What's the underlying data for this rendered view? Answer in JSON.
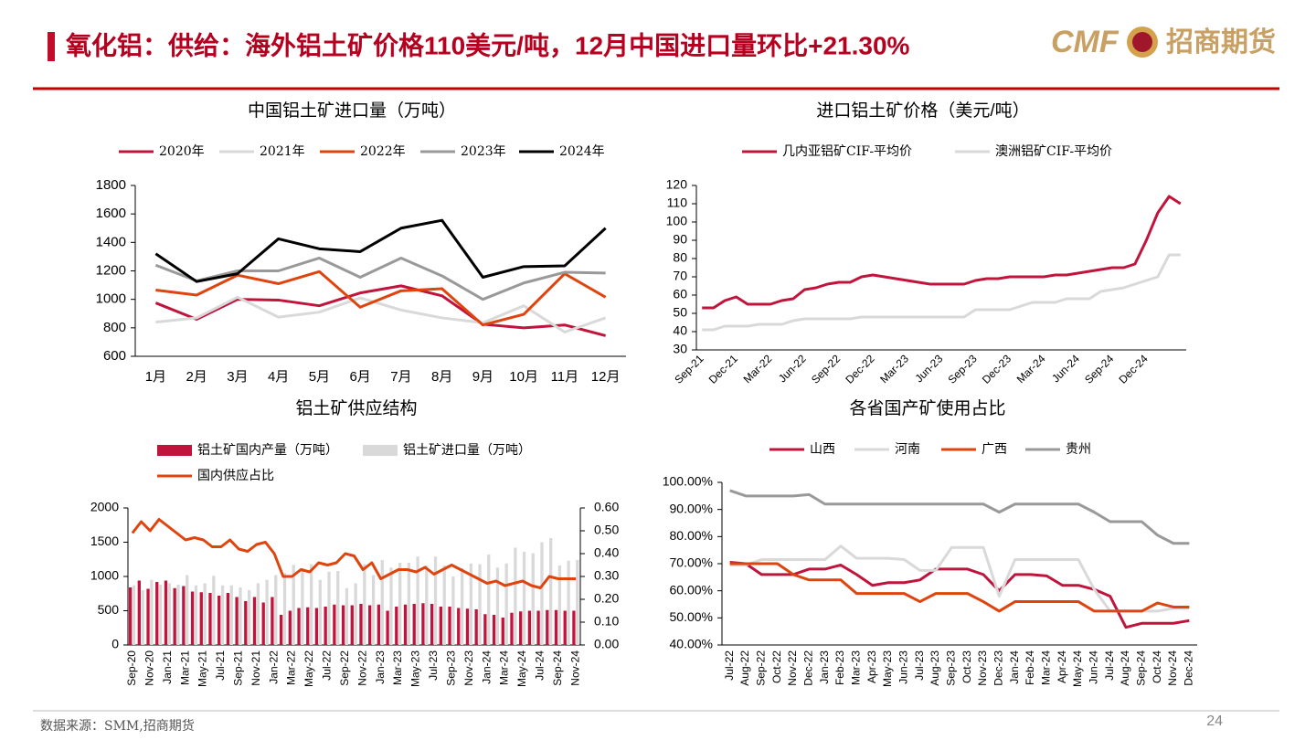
{
  "header": {
    "title": "氧化铝：供给：海外铝土矿价格110美元/吨，12月中国进口量环比+21.30%",
    "logo_left": "CMF",
    "logo_right": "招商期货"
  },
  "footer": {
    "source": "数据来源：SMM,招商期货",
    "page": "24"
  },
  "chart_data": [
    {
      "type": "line",
      "title": "中国铝土矿进口量（万吨）",
      "categories": [
        "1月",
        "2月",
        "3月",
        "4月",
        "5月",
        "6月",
        "7月",
        "8月",
        "9月",
        "10月",
        "11月",
        "12月"
      ],
      "series": [
        {
          "name": "2020年",
          "color": "#c0143c",
          "values": [
            975,
            860,
            1000,
            995,
            955,
            1045,
            1095,
            1025,
            825,
            800,
            820,
            745
          ]
        },
        {
          "name": "2021年",
          "color": "#d9d9d9",
          "values": [
            840,
            870,
            1015,
            875,
            910,
            1010,
            925,
            870,
            835,
            955,
            770,
            870
          ]
        },
        {
          "name": "2022年",
          "color": "#e0440e",
          "values": [
            1065,
            1030,
            1170,
            1110,
            1195,
            945,
            1060,
            1075,
            820,
            895,
            1180,
            1015
          ]
        },
        {
          "name": "2023年",
          "color": "#999999",
          "values": [
            1240,
            1130,
            1200,
            1200,
            1290,
            1155,
            1290,
            1165,
            1000,
            1115,
            1190,
            1185
          ]
        },
        {
          "name": "2024年",
          "color": "#000000",
          "values": [
            1320,
            1125,
            1180,
            1425,
            1355,
            1335,
            1500,
            1555,
            1155,
            1230,
            1235,
            1500
          ]
        }
      ],
      "ylim": [
        600,
        1800
      ],
      "yticks": [
        600,
        800,
        {
          "value": 1000,
          "label": "1000"
        },
        1200,
        1400,
        1600,
        1800
      ]
    },
    {
      "type": "line",
      "title": "进口铝土矿价格（美元/吨）",
      "categories": [
        "Sep-21",
        null,
        null,
        "Dec-21",
        null,
        null,
        "Mar-22",
        null,
        null,
        "Jun-22",
        null,
        null,
        "Sep-22",
        null,
        null,
        "Dec-22",
        null,
        null,
        "Mar-23",
        null,
        null,
        "Jun-23",
        null,
        null,
        "Sep-23",
        null,
        null,
        "Dec-23",
        null,
        null,
        "Mar-24",
        null,
        null,
        "Jun-24",
        null,
        null,
        "Sep-24",
        null,
        null,
        "Dec-24",
        null,
        null,
        null
      ],
      "series": [
        {
          "name": "几内亚铝矿CIF-平均价",
          "color": "#c0143c",
          "values": [
            53,
            53,
            57,
            59,
            55,
            55,
            55,
            57,
            58,
            63,
            64,
            66,
            67,
            67,
            70,
            71,
            70,
            69,
            68,
            67,
            66,
            66,
            66,
            66,
            68,
            69,
            69,
            70,
            70,
            70,
            70,
            71,
            71,
            72,
            73,
            74,
            75,
            75,
            77,
            90,
            105,
            114,
            110
          ]
        },
        {
          "name": "澳洲铝矿CIF-平均价",
          "color": "#d9d9d9",
          "values": [
            41,
            41,
            43,
            43,
            43,
            44,
            44,
            44,
            46,
            47,
            47,
            47,
            47,
            47,
            48,
            48,
            48,
            48,
            48,
            48,
            48,
            48,
            48,
            48,
            52,
            52,
            52,
            52,
            54,
            56,
            56,
            56,
            58,
            58,
            58,
            62,
            63,
            64,
            66,
            68,
            70,
            82,
            82
          ]
        }
      ],
      "ylim": [
        30,
        120
      ],
      "yticks": [
        30,
        40,
        50,
        60,
        70,
        80,
        90,
        100,
        110,
        120
      ]
    },
    {
      "type": "combo",
      "title": "铝土矿供应结构",
      "categories": [
        "Sep-20",
        null,
        "Nov-20",
        null,
        "Jan-21",
        null,
        "Mar-21",
        null,
        "May-21",
        null,
        "Jul-21",
        null,
        "Sep-21",
        null,
        "Nov-21",
        null,
        "Jan-22",
        null,
        "Mar-22",
        null,
        "May-22",
        null,
        "Jul-22",
        null,
        "Sep-22",
        null,
        "Nov-22",
        null,
        "Jan-23",
        null,
        "Mar-23",
        null,
        "May-23",
        null,
        "Jul-23",
        null,
        "Sep-23",
        null,
        "Nov-23",
        null,
        "Jan-24",
        null,
        "Mar-24",
        null,
        "May-24",
        null,
        "Jul-24",
        null,
        "Sep-24",
        null,
        "Nov-24"
      ],
      "series": [
        {
          "name": "铝土矿国内产量（万吨）",
          "type": "bar",
          "color": "#c0143c",
          "values": [
            840,
            940,
            820,
            920,
            940,
            830,
            860,
            780,
            770,
            760,
            720,
            760,
            700,
            640,
            700,
            620,
            700,
            440,
            500,
            540,
            550,
            540,
            560,
            590,
            580,
            580,
            600,
            580,
            590,
            500,
            560,
            590,
            600,
            610,
            600,
            560,
            560,
            540,
            530,
            520,
            450,
            440,
            400,
            470,
            490,
            500,
            500,
            510,
            510,
            500,
            500
          ]
        },
        {
          "name": "铝土矿进口量（万吨）",
          "type": "bar",
          "color": "#d9d9d9",
          "values": [
            870,
            800,
            950,
            880,
            900,
            880,
            1020,
            870,
            900,
            1010,
            870,
            870,
            840,
            800,
            900,
            950,
            1020,
            1050,
            1170,
            1120,
            1180,
            950,
            1070,
            1080,
            830,
            900,
            1180,
            1020,
            1240,
            1130,
            1200,
            1200,
            1290,
            1160,
            1290,
            1160,
            1000,
            1120,
            1190,
            1180,
            1320,
            1130,
            1190,
            1420,
            1360,
            1340,
            1500,
            1560,
            1160,
            1230,
            1240
          ]
        },
        {
          "name": "国内供应占比",
          "type": "line",
          "axis": "y2",
          "color": "#e0440e",
          "values": [
            0.49,
            0.54,
            0.5,
            0.55,
            0.52,
            0.49,
            0.46,
            0.47,
            0.46,
            0.43,
            0.43,
            0.46,
            0.42,
            0.41,
            0.44,
            0.45,
            0.4,
            0.3,
            0.3,
            0.33,
            0.32,
            0.36,
            0.35,
            0.36,
            0.4,
            0.39,
            0.33,
            0.36,
            0.29,
            0.31,
            0.33,
            0.33,
            0.32,
            0.34,
            0.31,
            0.33,
            0.35,
            0.33,
            0.31,
            0.29,
            0.27,
            0.28,
            0.26,
            0.27,
            0.28,
            0.26,
            0.25,
            0.3,
            0.29,
            0.29,
            0.29
          ]
        }
      ],
      "ylim": [
        0,
        2000
      ],
      "yticks": [
        0,
        500,
        {
          "value": 1000,
          "label": "1000"
        },
        1500,
        2000
      ],
      "y2lim": [
        0,
        0.6
      ],
      "y2ticks": [
        {
          "value": 0,
          "label": "0.00"
        },
        {
          "value": 0.1,
          "label": "0.10"
        },
        {
          "value": 0.2,
          "label": "0.20"
        },
        {
          "value": 0.3,
          "label": "0.30"
        },
        {
          "value": 0.4,
          "label": "0.40"
        },
        {
          "value": 0.5,
          "label": "0.50"
        },
        {
          "value": 0.6,
          "label": "0.60"
        }
      ]
    },
    {
      "type": "line",
      "title": "各省国产矿使用占比",
      "categories": [
        "Jul-22",
        "Aug-22",
        "Sep-22",
        "Oct-22",
        "Nov-22",
        "Dec-22",
        "Jan-23",
        "Feb-23",
        "Mar-23",
        "Apr-23",
        "May-23",
        "Jun-23",
        "Jul-23",
        "Aug-23",
        "Sep-23",
        "Oct-23",
        "Nov-23",
        "Dec-23",
        "Jan-24",
        "Feb-24",
        "Mar-24",
        "Apr-24",
        "May-24",
        "Jun-24",
        "Jul-24",
        "Aug-24",
        "Sep-24",
        "Oct-24",
        "Nov-24",
        "Dec-24"
      ],
      "series": [
        {
          "name": "山西",
          "color": "#c0143c",
          "values": [
            70.5,
            70,
            66,
            66,
            66,
            68,
            68,
            69.5,
            66,
            62,
            63,
            63,
            64,
            68,
            68,
            68,
            66,
            60,
            66,
            66,
            65.5,
            62,
            62,
            60.5,
            58,
            46.5,
            48,
            48,
            48,
            49
          ]
        },
        {
          "name": "河南",
          "color": "#d9d9d9",
          "values": [
            69.5,
            69.5,
            71.5,
            71.5,
            71.5,
            71.5,
            71.5,
            76.5,
            72,
            72,
            72,
            71.5,
            67.5,
            67.5,
            76,
            76,
            76,
            58,
            71.5,
            71.5,
            71.5,
            71.5,
            71.5,
            60.5,
            52.5,
            52.5,
            52.5,
            52.5,
            53.5,
            53.5
          ]
        },
        {
          "name": "广西",
          "color": "#e0440e",
          "values": [
            70,
            70,
            70,
            70,
            66,
            64,
            64,
            64,
            59,
            59,
            59,
            59,
            56,
            59,
            59,
            59,
            56,
            52.5,
            56,
            56,
            56,
            56,
            56,
            52.5,
            52.5,
            52.5,
            52.5,
            55.5,
            54,
            54
          ]
        },
        {
          "name": "贵州",
          "color": "#999999",
          "values": [
            97,
            95,
            95,
            95,
            95,
            95.5,
            92,
            92,
            92,
            92,
            92,
            92,
            92,
            92,
            92,
            92,
            92,
            89,
            92,
            92,
            92,
            92,
            92,
            89,
            85.5,
            85.5,
            85.5,
            80.5,
            77.5,
            77.5
          ]
        }
      ],
      "ylim": [
        40,
        100
      ],
      "yticks": [
        {
          "value": 40,
          "label": "40.00%"
        },
        {
          "value": 50,
          "label": "50.00%"
        },
        {
          "value": 60,
          "label": "60.00%"
        },
        {
          "value": 70,
          "label": "70.00%"
        },
        {
          "value": 80,
          "label": "80.00%"
        },
        {
          "value": 90,
          "label": "90.00%"
        },
        {
          "value": 100,
          "label": "100.00%"
        }
      ]
    }
  ]
}
